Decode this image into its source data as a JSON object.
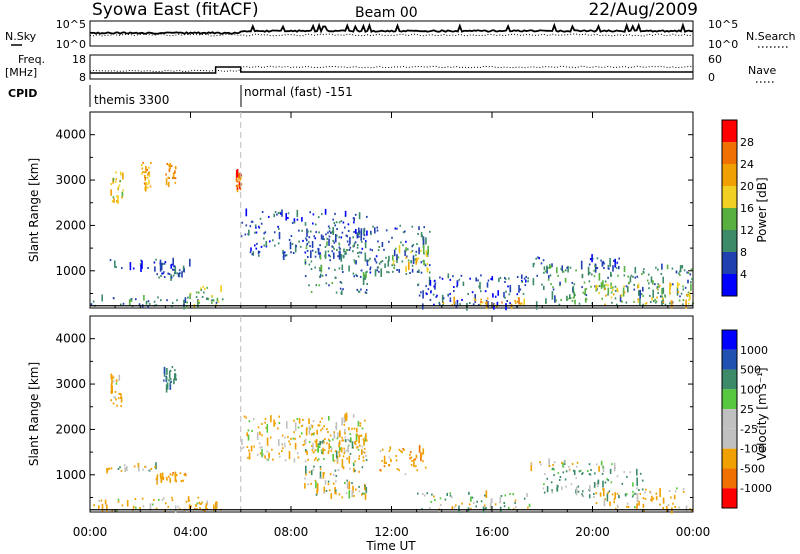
{
  "header": {
    "station": "Syowa East (fitACF)",
    "beam": "Beam 00",
    "date": "22/Aug/2009"
  },
  "strip": {
    "nsky_label": "N.Sky",
    "nsearch_label": "N.Search",
    "noise_ticks": [
      "10^5",
      "10^0"
    ],
    "freq_label": "Freq.",
    "freq_unit": "[MHz]",
    "freq_ticks": [
      "18",
      "8"
    ],
    "nave_label": "Nave",
    "nave_ticks": [
      "60",
      "0"
    ],
    "cpid_label": "CPID",
    "cpid_segments": [
      {
        "label": "themis 3300",
        "start_hour": 0
      },
      {
        "label": "normal (fast) -151",
        "start_hour": 6
      }
    ]
  },
  "chart_data": [
    {
      "type": "heatmap",
      "ylabel": "Slant Range [km]",
      "xlabel": "",
      "xlim": [
        0,
        24
      ],
      "ylim": [
        180,
        4500
      ],
      "yticks": [
        1000,
        2000,
        3000,
        4000
      ],
      "colorbar": {
        "label": "Power [dB]",
        "ticks": [
          "4",
          "8",
          "12",
          "16",
          "20",
          "24",
          "28"
        ],
        "range": [
          0,
          30
        ],
        "colors": [
          "#0000ff",
          "#2040b0",
          "#3c8a68",
          "#58b040",
          "#f0d020",
          "#f0a000",
          "#f07000",
          "#ff0000"
        ]
      },
      "observations": [
        {
          "t_start": 0.0,
          "t_end": 5.3,
          "r_start": 200,
          "r_end": 420,
          "value": 8
        },
        {
          "t_start": 0.6,
          "t_end": 4.0,
          "r_start": 1050,
          "r_end": 1250,
          "value": 6
        },
        {
          "t_start": 2.5,
          "t_end": 3.8,
          "r_start": 850,
          "r_end": 1050,
          "value": 7
        },
        {
          "t_start": 3.8,
          "t_end": 5.2,
          "r_start": 200,
          "r_end": 650,
          "value": 14
        },
        {
          "t_start": 0.8,
          "t_end": 1.3,
          "r_start": 2500,
          "r_end": 3200,
          "value": 18
        },
        {
          "t_start": 2.0,
          "t_end": 2.4,
          "r_start": 2800,
          "r_end": 3400,
          "value": 20
        },
        {
          "t_start": 2.9,
          "t_end": 3.4,
          "r_start": 2900,
          "r_end": 3400,
          "value": 22
        },
        {
          "t_start": 5.8,
          "t_end": 6.0,
          "r_start": 2800,
          "r_end": 3200,
          "value": 24
        },
        {
          "t_start": 6.0,
          "t_end": 11.0,
          "r_start": 1300,
          "r_end": 2300,
          "value": 6
        },
        {
          "t_start": 8.5,
          "t_end": 11.0,
          "r_start": 500,
          "r_end": 1900,
          "value": 8
        },
        {
          "t_start": 11.0,
          "t_end": 13.5,
          "r_start": 900,
          "r_end": 2000,
          "value": 7
        },
        {
          "t_start": 12.0,
          "t_end": 13.5,
          "r_start": 1000,
          "r_end": 1500,
          "value": 16
        },
        {
          "t_start": 13.0,
          "t_end": 18.0,
          "r_start": 200,
          "r_end": 900,
          "value": 6
        },
        {
          "t_start": 14.0,
          "t_end": 17.5,
          "r_start": 200,
          "r_end": 400,
          "value": 20
        },
        {
          "t_start": 17.5,
          "t_end": 21.5,
          "r_start": 1050,
          "r_end": 1300,
          "value": 6
        },
        {
          "t_start": 18.0,
          "t_end": 24.0,
          "r_start": 250,
          "r_end": 1100,
          "value": 10
        },
        {
          "t_start": 20.0,
          "t_end": 24.0,
          "r_start": 250,
          "r_end": 700,
          "value": 18
        }
      ]
    },
    {
      "type": "heatmap",
      "ylabel": "Slant Range [km]",
      "xlabel": "Time UT",
      "xlim": [
        0,
        24
      ],
      "ylim": [
        180,
        4500
      ],
      "yticks": [
        1000,
        2000,
        3000,
        4000
      ],
      "xticks": [
        "00:00",
        "04:00",
        "08:00",
        "12:00",
        "16:00",
        "20:00",
        "00:00"
      ],
      "colorbar": {
        "label": "Velocity [m s⁻¹]",
        "ticks": [
          "1000",
          "500",
          "100",
          "25",
          "-25",
          "-100",
          "-500",
          "-1000"
        ],
        "range": [
          -1250,
          1250
        ],
        "colors": [
          "#ff0000",
          "#f07000",
          "#f0a000",
          "#c0c0c0",
          "#c0c0c0",
          "#58c840",
          "#3c8a68",
          "#2050b0",
          "#0000ff"
        ],
        "color_bounds": [
          -1250,
          -1000,
          -500,
          -100,
          -25,
          25,
          100,
          500,
          1000,
          1250
        ]
      },
      "observations": [
        {
          "t_start": 0.0,
          "t_end": 4.5,
          "r_start": 200,
          "r_end": 500,
          "value": -150
        },
        {
          "t_start": 0.6,
          "t_end": 3.0,
          "r_start": 1080,
          "r_end": 1220,
          "value": 0
        },
        {
          "t_start": 2.6,
          "t_end": 3.8,
          "r_start": 850,
          "r_end": 1050,
          "value": -300
        },
        {
          "t_start": 3.8,
          "t_end": 5.2,
          "r_start": 200,
          "r_end": 400,
          "value": -200
        },
        {
          "t_start": 0.8,
          "t_end": 1.3,
          "r_start": 2500,
          "r_end": 3200,
          "value": -200
        },
        {
          "t_start": 2.9,
          "t_end": 3.4,
          "r_start": 2900,
          "r_end": 3400,
          "value": 400
        },
        {
          "t_start": 6.0,
          "t_end": 11.0,
          "r_start": 1300,
          "r_end": 2300,
          "value": -150
        },
        {
          "t_start": 8.5,
          "t_end": 11.0,
          "r_start": 500,
          "r_end": 1900,
          "value": -50
        },
        {
          "t_start": 11.5,
          "t_end": 13.5,
          "r_start": 1000,
          "r_end": 1600,
          "value": -300
        },
        {
          "t_start": 13.0,
          "t_end": 17.5,
          "r_start": 200,
          "r_end": 600,
          "value": 60
        },
        {
          "t_start": 17.5,
          "t_end": 21.5,
          "r_start": 1080,
          "r_end": 1280,
          "value": 0
        },
        {
          "t_start": 18.0,
          "t_end": 22.0,
          "r_start": 500,
          "r_end": 1100,
          "value": 200
        },
        {
          "t_start": 20.0,
          "t_end": 24.0,
          "r_start": 200,
          "r_end": 700,
          "value": -200
        }
      ]
    }
  ]
}
